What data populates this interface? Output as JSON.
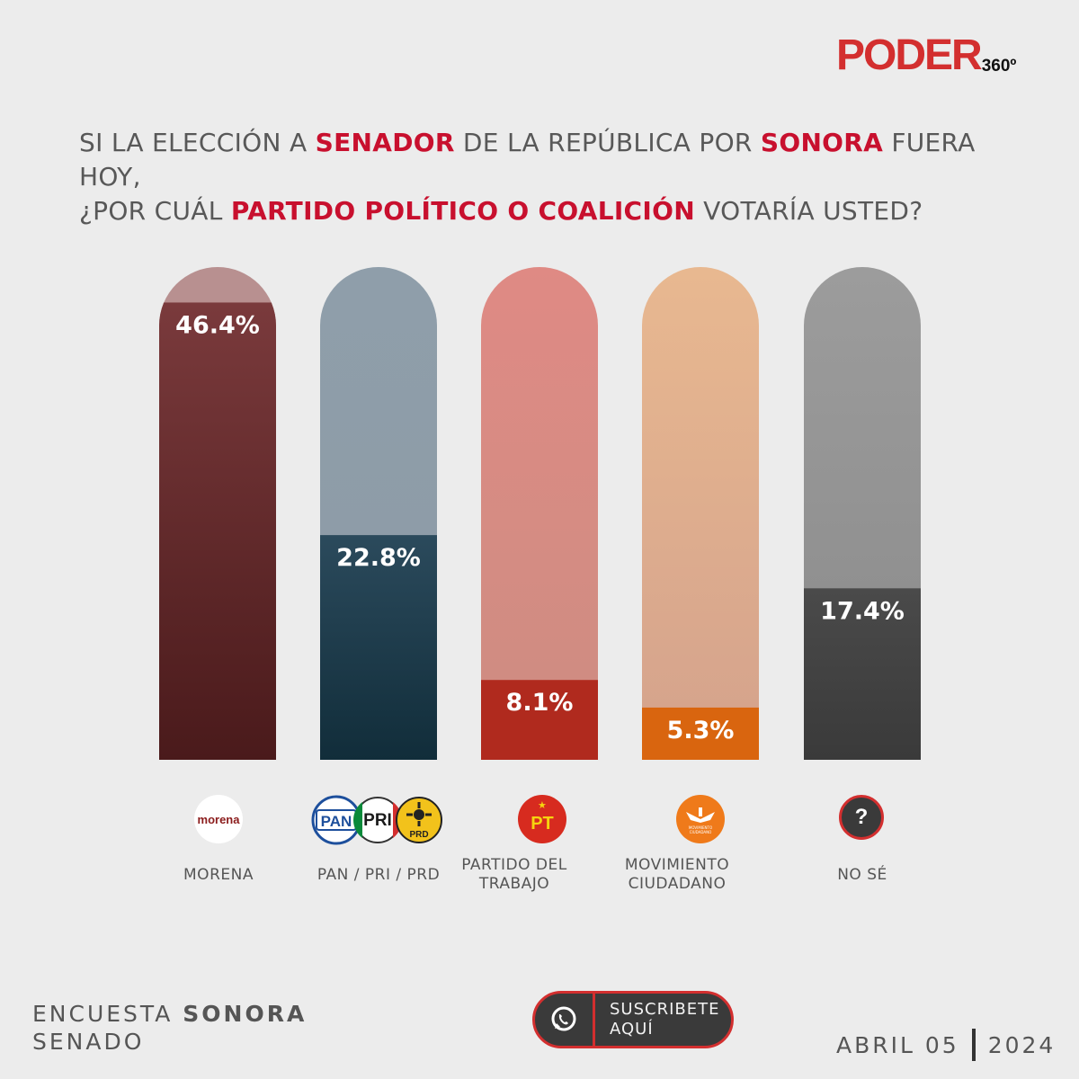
{
  "brand": {
    "name": "PODER",
    "suffix": "360º"
  },
  "question": {
    "line1": [
      {
        "text": "SI LA ELECCIÓN A ",
        "hl": false
      },
      {
        "text": "SENADOR",
        "hl": true
      },
      {
        "text": " DE LA REPÚBLICA POR ",
        "hl": false
      },
      {
        "text": "SONORA",
        "hl": true
      },
      {
        "text": " FUERA HOY,",
        "hl": false
      }
    ],
    "line2": [
      {
        "text": "¿POR CUÁL ",
        "hl": false
      },
      {
        "text": "PARTIDO POLÍTICO O COALICIÓN",
        "hl": true
      },
      {
        "text": " VOTARÍA USTED?",
        "hl": false
      }
    ]
  },
  "chart_data": {
    "type": "bar",
    "categories": [
      "MORENA",
      "PAN / PRI / PRD",
      "PARTIDO DEL TRABAJO",
      "MOVIMIENTO CIUDADANO",
      "NO SÉ"
    ],
    "values": [
      46.4,
      22.8,
      8.1,
      5.3,
      17.4
    ],
    "value_labels": [
      "46.4%",
      "22.8%",
      "8.1%",
      "5.3%",
      "17.4%"
    ],
    "ylim": [
      0,
      50
    ],
    "colors": {
      "fill": [
        [
          "#7a3a3c",
          "#4a1a1b"
        ],
        [
          "#2b4a5c",
          "#112d3a"
        ],
        [
          "#b02a1e",
          "#b02a1e"
        ],
        [
          "#d9650f",
          "#d9650f"
        ],
        [
          "#4a4a4a",
          "#3a3a3a"
        ]
      ],
      "track": [
        [
          "#b89090",
          "#b89090"
        ],
        [
          "#8f9eaa",
          "#8d9ba6"
        ],
        [
          "#df8a84",
          "#cd8d82"
        ],
        [
          "#e8b890",
          "#d4a28c"
        ],
        [
          "#9c9c9c",
          "#8a8a8a"
        ]
      ]
    }
  },
  "icons": [
    {
      "name": "morena-logo",
      "text": "morena"
    },
    {
      "name": "pan-pri-prd-logos",
      "texts": [
        "PAN",
        "PRI",
        "PRD"
      ]
    },
    {
      "name": "pt-logo",
      "text": "PT"
    },
    {
      "name": "movimiento-ciudadano-logo",
      "text": "MOVIMIENTO CIUDADANO"
    },
    {
      "name": "question-icon",
      "text": "?"
    }
  ],
  "footer": {
    "survey_prefix": "ENCUESTA ",
    "survey_state": "SONORA",
    "survey_type": "SENADO",
    "subscribe_line1": "SUSCRIBETE",
    "subscribe_line2": "AQUÍ",
    "date": "ABRIL 05",
    "year": "2024"
  }
}
